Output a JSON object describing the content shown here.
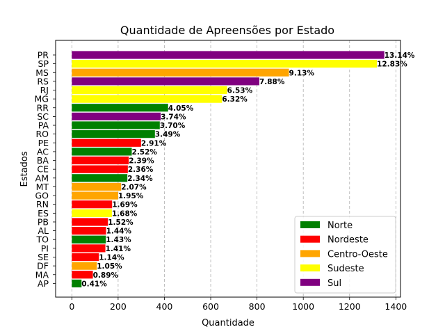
{
  "chart_data": {
    "type": "bar",
    "orientation": "horizontal",
    "title": "Quantidade de Apreensões por Estado",
    "xlabel": "Quantidade",
    "ylabel": "Estados",
    "xlim": [
      -70,
      1420
    ],
    "xticks": [
      0,
      200,
      400,
      600,
      800,
      1000,
      1200,
      1400
    ],
    "grid": "x-dashed",
    "legend_position": "bottom-right",
    "regions": [
      {
        "name": "Norte",
        "color": "#008000"
      },
      {
        "name": "Nordeste",
        "color": "#ff0000"
      },
      {
        "name": "Centro-Oeste",
        "color": "#ffa500"
      },
      {
        "name": "Sudeste",
        "color": "#ffff00"
      },
      {
        "name": "Sul",
        "color": "#800080"
      }
    ],
    "bars": [
      {
        "state": "PR",
        "value": 1350,
        "label": "13.14%",
        "region": "Sul"
      },
      {
        "state": "SP",
        "value": 1318,
        "label": "12.83%",
        "region": "Sudeste"
      },
      {
        "state": "MS",
        "value": 938,
        "label": "9.13%",
        "region": "Centro-Oeste"
      },
      {
        "state": "RS",
        "value": 810,
        "label": "7.88%",
        "region": "Sul"
      },
      {
        "state": "RJ",
        "value": 671,
        "label": "6.53%",
        "region": "Sudeste"
      },
      {
        "state": "MG",
        "value": 649,
        "label": "6.32%",
        "region": "Sudeste"
      },
      {
        "state": "RR",
        "value": 416,
        "label": "4.05%",
        "region": "Norte"
      },
      {
        "state": "SC",
        "value": 384,
        "label": "3.74%",
        "region": "Sul"
      },
      {
        "state": "PA",
        "value": 380,
        "label": "3.70%",
        "region": "Norte"
      },
      {
        "state": "RO",
        "value": 359,
        "label": "3.49%",
        "region": "Norte"
      },
      {
        "state": "PE",
        "value": 299,
        "label": "2.91%",
        "region": "Nordeste"
      },
      {
        "state": "AC",
        "value": 259,
        "label": "2.52%",
        "region": "Norte"
      },
      {
        "state": "BA",
        "value": 246,
        "label": "2.39%",
        "region": "Nordeste"
      },
      {
        "state": "CE",
        "value": 242,
        "label": "2.36%",
        "region": "Nordeste"
      },
      {
        "state": "AM",
        "value": 240,
        "label": "2.34%",
        "region": "Norte"
      },
      {
        "state": "MT",
        "value": 213,
        "label": "2.07%",
        "region": "Centro-Oeste"
      },
      {
        "state": "GO",
        "value": 200,
        "label": "1.95%",
        "region": "Centro-Oeste"
      },
      {
        "state": "RN",
        "value": 174,
        "label": "1.69%",
        "region": "Nordeste"
      },
      {
        "state": "ES",
        "value": 173,
        "label": "1.68%",
        "region": "Sudeste"
      },
      {
        "state": "PB",
        "value": 156,
        "label": "1.52%",
        "region": "Nordeste"
      },
      {
        "state": "AL",
        "value": 148,
        "label": "1.44%",
        "region": "Nordeste"
      },
      {
        "state": "TO",
        "value": 147,
        "label": "1.43%",
        "region": "Norte"
      },
      {
        "state": "PI",
        "value": 145,
        "label": "1.41%",
        "region": "Nordeste"
      },
      {
        "state": "SE",
        "value": 117,
        "label": "1.14%",
        "region": "Nordeste"
      },
      {
        "state": "DF",
        "value": 108,
        "label": "1.05%",
        "region": "Centro-Oeste"
      },
      {
        "state": "MA",
        "value": 91,
        "label": "0.89%",
        "region": "Nordeste"
      },
      {
        "state": "AP",
        "value": 42,
        "label": "0.41%",
        "region": "Norte"
      }
    ]
  }
}
